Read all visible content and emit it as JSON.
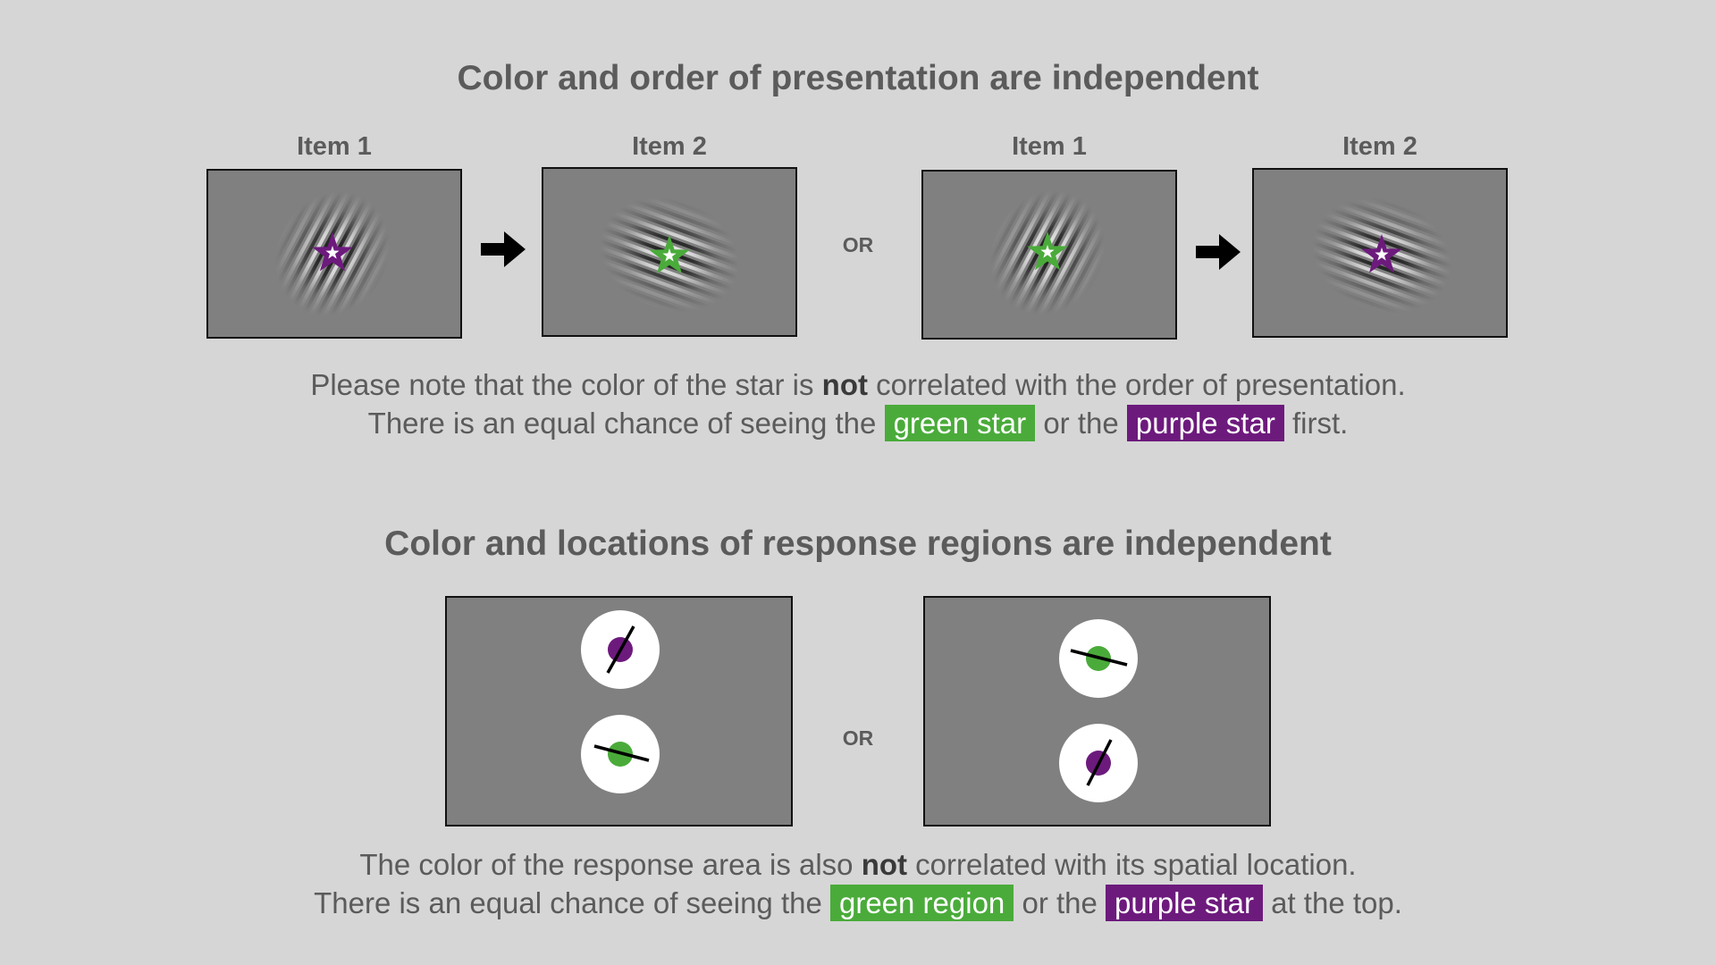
{
  "section1": {
    "title": "Color and order of presentation are independent",
    "left_pair": {
      "item1_label": "Item 1",
      "item2_label": "Item 2"
    },
    "right_pair": {
      "item1_label": "Item 1",
      "item2_label": "Item 2"
    },
    "or_label": "OR",
    "note_line1": {
      "pre": "Please note that the color of the star is ",
      "bold": "not",
      "post": " correlated with the order of presentation."
    },
    "note_line2": {
      "pre": "There is an equal chance of seeing the ",
      "hl1": "green star",
      "mid": " or the ",
      "hl2": "purple star",
      "post": " first."
    }
  },
  "section2": {
    "title": "Color and locations of response regions are independent",
    "or_label": "OR",
    "note_line1": {
      "pre": "The color of the response area is also ",
      "bold": "not",
      "post": " correlated with its spatial location."
    },
    "note_line2": {
      "pre": "There is an equal chance of seeing the ",
      "hl1": "green region",
      "mid": " or the ",
      "hl2": "purple star",
      "post": " at the top."
    }
  },
  "colors": {
    "green": "#4aab3a",
    "purple": "#6d1a7d",
    "panel_gray": "#808080",
    "background": "#d6d6d6",
    "text": "#5b5b5b"
  }
}
